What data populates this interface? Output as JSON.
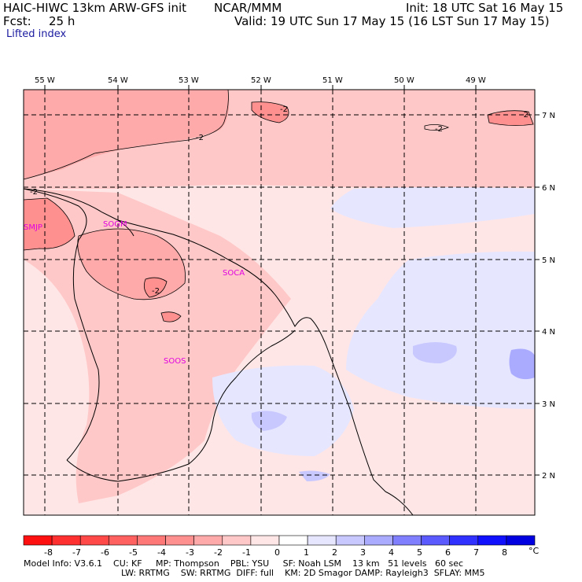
{
  "header": {
    "model": "HAIC-HIWC 13km ARW-GFS init",
    "org": "NCAR/MMM",
    "init": "Init: 18 UTC Sat 16 May 15",
    "fcst_label": "Fcst:",
    "fcst_value": "25 h",
    "valid": "Valid: 19 UTC Sun 17 May 15 (16 LST Sun 17 May 15)",
    "field": "Lifted index"
  },
  "map": {
    "lon_labels": [
      "55 W",
      "54 W",
      "53 W",
      "52 W",
      "51 W",
      "50 W",
      "49 W"
    ],
    "lat_labels": [
      "7 N",
      "6 N",
      "5 N",
      "4 N",
      "3 N",
      "2 N"
    ],
    "stations": [
      "SMJP",
      "SOGM",
      "SOCA",
      "SOOS"
    ],
    "contour_labels": [
      "-2",
      "-2",
      "-2",
      "-2",
      "-2",
      "-2"
    ]
  },
  "colorbar": {
    "ticks": [
      "-8",
      "-7",
      "-6",
      "-5",
      "-4",
      "-3",
      "-2",
      "-1",
      "0",
      "1",
      "2",
      "3",
      "4",
      "5",
      "6",
      "7",
      "8"
    ],
    "unit": "°C",
    "colors": [
      "#ff1010",
      "#ff3030",
      "#ff4848",
      "#ff6060",
      "#ff7878",
      "#ff9090",
      "#ffaaaa",
      "#ffc8c8",
      "#ffe6e6",
      "#ffffff",
      "#e6e6ff",
      "#c8c8ff",
      "#aaaaff",
      "#8080ff",
      "#5a5aff",
      "#3030ff",
      "#1010ff",
      "#0000e0"
    ]
  },
  "footer": {
    "line1": "Model Info: V3.6.1    CU: KF     MP: Thompson    PBL: YSU     SF: Noah LSM    13 km   51 levels   60 sec",
    "line2": "LW: RRTMG    SW: RRTMG  DIFF: full    KM: 2D Smagor DAMP: Rayleigh3  SFLAY: MM5"
  }
}
